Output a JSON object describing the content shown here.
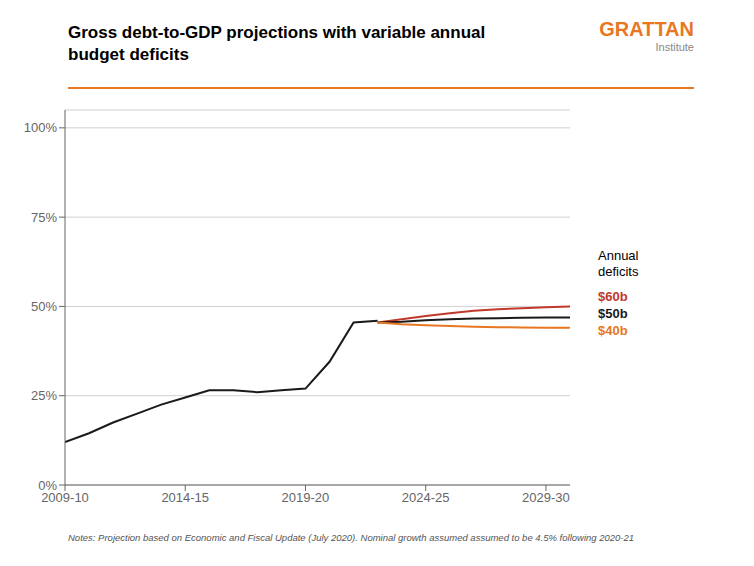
{
  "chart_data": {
    "type": "line",
    "title": "Gross debt-to-GDP projections with variable annual\nbudget deficits",
    "note": "Notes: Projection based on Economic and Fiscal Update (July 2020). Nominal growth assumed assumed to be 4.5% following 2020-21",
    "annotations": [
      {
        "text": "Annual\ndeficits"
      },
      {
        "text": "GRATTAN",
        "color": "#e87722"
      },
      {
        "text": "Institute"
      }
    ],
    "x": [
      2009,
      2010,
      2011,
      2012,
      2013,
      2014,
      2015,
      2016,
      2017,
      2018,
      2019,
      2020,
      2021,
      2022,
      2023,
      2024,
      2025,
      2026,
      2027,
      2028,
      2029,
      2030
    ],
    "series": [
      {
        "color": "#1a1a1a",
        "values": [
          0.12,
          0.145,
          0.175,
          0.2,
          0.225,
          0.245,
          0.265,
          0.265,
          0.26,
          0.265,
          0.27,
          0.345,
          0.455,
          0.46,
          null,
          null,
          null,
          null,
          null,
          null,
          null,
          null
        ]
      },
      {
        "name": "$60b",
        "color": "#c0392b",
        "values": [
          null,
          null,
          null,
          null,
          null,
          null,
          null,
          null,
          null,
          null,
          null,
          null,
          null,
          0.455,
          0.464,
          0.473,
          0.481,
          0.488,
          0.492,
          0.495,
          0.498,
          0.5
        ]
      },
      {
        "name": "$50b",
        "color": "#1a1a1a",
        "values": [
          null,
          null,
          null,
          null,
          null,
          null,
          null,
          null,
          null,
          null,
          null,
          null,
          null,
          0.455,
          0.457,
          0.461,
          0.464,
          0.466,
          0.467,
          0.468,
          0.469,
          0.469
        ]
      },
      {
        "name": "$40b",
        "color": "#e87722",
        "values": [
          null,
          null,
          null,
          null,
          null,
          null,
          null,
          null,
          null,
          null,
          null,
          null,
          null,
          0.455,
          0.45,
          0.447,
          0.445,
          0.443,
          0.442,
          0.441,
          0.44,
          0.44
        ]
      }
    ],
    "xlim": [
      2009,
      2030
    ],
    "xticks": [
      {
        "value": 2009,
        "label": "2009-10"
      },
      {
        "value": 2014,
        "label": "2014-15"
      },
      {
        "value": 2019,
        "label": "2019-20"
      },
      {
        "value": 2024,
        "label": "2024-25"
      },
      {
        "value": 2029,
        "label": "2029-30"
      }
    ],
    "ylim": [
      0,
      1.05
    ],
    "yticks": [
      {
        "value": 0,
        "label": "0%"
      },
      {
        "value": 0.25,
        "label": "25%"
      },
      {
        "value": 0.5,
        "label": "50%"
      },
      {
        "value": 0.75,
        "label": "75%"
      },
      {
        "value": 1.0,
        "label": "100%"
      }
    ],
    "grid": true
  }
}
